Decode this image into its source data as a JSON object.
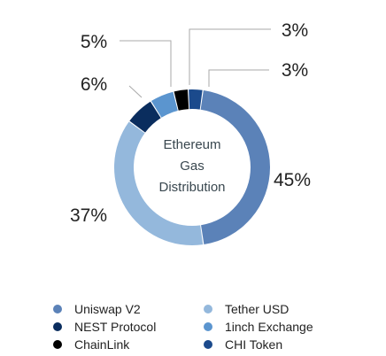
{
  "chart_data": {
    "type": "pie",
    "style": "donut",
    "title": "Ethereum Gas Distribution",
    "title_lines": [
      "Ethereum",
      "Gas",
      "Distribution"
    ],
    "categories": [
      "Uniswap V2",
      "Tether USD",
      "NEST Protocol",
      "1inch Exchange",
      "ChainLink",
      "CHI Token"
    ],
    "values": [
      45,
      37,
      6,
      5,
      3,
      3
    ],
    "labels": [
      "45%",
      "37%",
      "6%",
      "5%",
      "3%",
      "3%"
    ],
    "colors": [
      "#5b82b8",
      "#94b8dc",
      "#0a2d5e",
      "#5b95cf",
      "#000000",
      "#1b4a8c"
    ],
    "legend": {
      "position": "bottom",
      "items": [
        {
          "label": "Uniswap V2",
          "color": "#5b82b8"
        },
        {
          "label": "Tether USD",
          "color": "#94b8dc"
        },
        {
          "label": "NEST Protocol",
          "color": "#0a2d5e"
        },
        {
          "label": "1inch Exchange",
          "color": "#5b95cf"
        },
        {
          "label": "ChainLink",
          "color": "#000000"
        },
        {
          "label": "CHI Token",
          "color": "#1b4a8c"
        }
      ]
    }
  }
}
